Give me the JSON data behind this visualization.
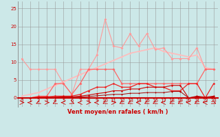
{
  "xlabel": "Vent moyen/en rafales ( km/h )",
  "xlim": [
    -0.5,
    23.5
  ],
  "ylim": [
    -2.5,
    27
  ],
  "yticks": [
    0,
    5,
    10,
    15,
    20,
    25
  ],
  "xticks": [
    0,
    1,
    2,
    3,
    4,
    5,
    6,
    7,
    8,
    9,
    10,
    11,
    12,
    13,
    14,
    15,
    16,
    17,
    18,
    19,
    20,
    21,
    22,
    23
  ],
  "background_color": "#cce8e8",
  "grid_color": "#999999",
  "lines": [
    {
      "x": [
        0,
        1,
        2,
        3,
        4,
        5,
        6,
        7,
        8,
        9,
        10,
        11,
        12,
        13,
        14,
        15,
        16,
        17,
        18,
        19,
        20,
        21,
        22,
        23
      ],
      "y": [
        11,
        8,
        8,
        8,
        8,
        4,
        1,
        8,
        8,
        12,
        22,
        14.5,
        14,
        18,
        14.5,
        18,
        13.5,
        14,
        11,
        11,
        11,
        14,
        8,
        8
      ],
      "color": "#ff9999",
      "lw": 0.8,
      "marker": "D",
      "ms": 2.0,
      "zorder": 3
    },
    {
      "x": [
        0,
        1,
        2,
        3,
        4,
        5,
        6,
        7,
        8,
        9,
        10,
        11,
        12,
        13,
        14,
        15,
        16,
        17,
        18,
        19,
        20,
        21,
        22,
        23
      ],
      "y": [
        0.5,
        1.0,
        1.5,
        2.5,
        3.5,
        4.5,
        5.5,
        6.5,
        7.5,
        8.5,
        9.5,
        10.5,
        11.5,
        12.5,
        13.0,
        13.5,
        14.0,
        13.0,
        12.5,
        12.0,
        11.5,
        12.0,
        8.5,
        8.0
      ],
      "color": "#ffbbbb",
      "lw": 1.2,
      "marker": "D",
      "ms": 1.5,
      "zorder": 2
    },
    {
      "x": [
        0,
        1,
        2,
        3,
        4,
        5,
        6,
        7,
        8,
        9,
        10,
        11,
        12,
        13,
        14,
        15,
        16,
        17,
        18,
        19,
        20,
        21,
        22,
        23
      ],
      "y": [
        0,
        0,
        0.5,
        0.5,
        4,
        4,
        1,
        4,
        8,
        8,
        8,
        8,
        4,
        4,
        4,
        4,
        4,
        4,
        4,
        4,
        4,
        4,
        8,
        8
      ],
      "color": "#ff6666",
      "lw": 0.9,
      "marker": "D",
      "ms": 2.0,
      "zorder": 4
    },
    {
      "x": [
        0,
        1,
        2,
        3,
        4,
        5,
        6,
        7,
        8,
        9,
        10,
        11,
        12,
        13,
        14,
        15,
        16,
        17,
        18,
        19,
        20,
        21,
        22,
        23
      ],
      "y": [
        0,
        0,
        0.3,
        0.3,
        0.5,
        0.5,
        0.5,
        1,
        2,
        3,
        3,
        4,
        3,
        3,
        4,
        4,
        3,
        3,
        2,
        2,
        4,
        4,
        0,
        4
      ],
      "color": "#ee2222",
      "lw": 0.9,
      "marker": "D",
      "ms": 1.8,
      "zorder": 5
    },
    {
      "x": [
        0,
        1,
        2,
        3,
        4,
        5,
        6,
        7,
        8,
        9,
        10,
        11,
        12,
        13,
        14,
        15,
        16,
        17,
        18,
        19,
        20,
        21,
        22,
        23
      ],
      "y": [
        0,
        0,
        0.1,
        0.2,
        0.2,
        0.3,
        0.3,
        0.5,
        0.8,
        1.2,
        1.5,
        2.0,
        2.0,
        2.5,
        2.5,
        3.0,
        3.0,
        3.0,
        3.5,
        3.5,
        0,
        0.5,
        0.2,
        0.5
      ],
      "color": "#cc0000",
      "lw": 0.8,
      "marker": "D",
      "ms": 1.5,
      "zorder": 5
    },
    {
      "x": [
        0,
        1,
        2,
        3,
        4,
        5,
        6,
        7,
        8,
        9,
        10,
        11,
        12,
        13,
        14,
        15,
        16,
        17,
        18,
        19,
        20,
        21,
        22,
        23
      ],
      "y": [
        0,
        0,
        0.05,
        0.1,
        0.1,
        0.15,
        0.15,
        0.25,
        0.4,
        0.6,
        0.8,
        1.0,
        1.0,
        1.3,
        1.3,
        1.5,
        1.5,
        1.5,
        1.8,
        1.8,
        0,
        0.3,
        0.1,
        0.3
      ],
      "color": "#aa0000",
      "lw": 0.7,
      "marker": "D",
      "ms": 1.2,
      "zorder": 5
    }
  ],
  "arrow_color": "#cc0000",
  "xlabel_color": "#cc0000",
  "xlabel_fontsize": 6,
  "tick_fontsize": 5,
  "ytick_fontsize": 5
}
